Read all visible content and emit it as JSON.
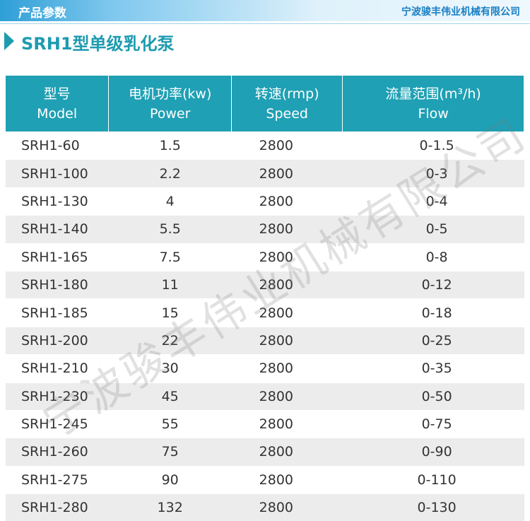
{
  "banner": {
    "title": "产品参数",
    "company": "宁波骏丰伟业机械有限公司"
  },
  "heading": "SRH1型单级乳化泵",
  "table": {
    "header": [
      {
        "zh": "型号",
        "en": "Model"
      },
      {
        "zh": "电机功率(kw)",
        "en": "Power"
      },
      {
        "zh": "转速(rmp)",
        "en": "Speed"
      },
      {
        "zh": "流量范围(m³/h)",
        "en": "Flow"
      }
    ],
    "rows": [
      [
        "SRH1-60",
        1.5,
        2800,
        "0-1.5"
      ],
      [
        "SRH1-100",
        2.2,
        2800,
        "0-3"
      ],
      [
        "SRH1-130",
        4,
        2800,
        "0-4"
      ],
      [
        "SRH1-140",
        5.5,
        2800,
        "0-5"
      ],
      [
        "SRH1-165",
        7.5,
        2800,
        "0-8"
      ],
      [
        "SRH1-180",
        11,
        2800,
        "0-12"
      ],
      [
        "SRH1-185",
        15,
        2800,
        "0-18"
      ],
      [
        "SRH1-200",
        22,
        2800,
        "0-25"
      ],
      [
        "SRH1-210",
        30,
        2800,
        "0-35"
      ],
      [
        "SRH1-230",
        45,
        2800,
        "0-50"
      ],
      [
        "SRH1-245",
        55,
        2800,
        "0-75"
      ],
      [
        "SRH1-260",
        75,
        2800,
        "0-90"
      ],
      [
        "SRH1-275",
        90,
        2800,
        "0-110"
      ],
      [
        "SRH1-280",
        132,
        2800,
        "0-130"
      ]
    ]
  },
  "watermark": "宁波骏丰伟业机械有限公司"
}
